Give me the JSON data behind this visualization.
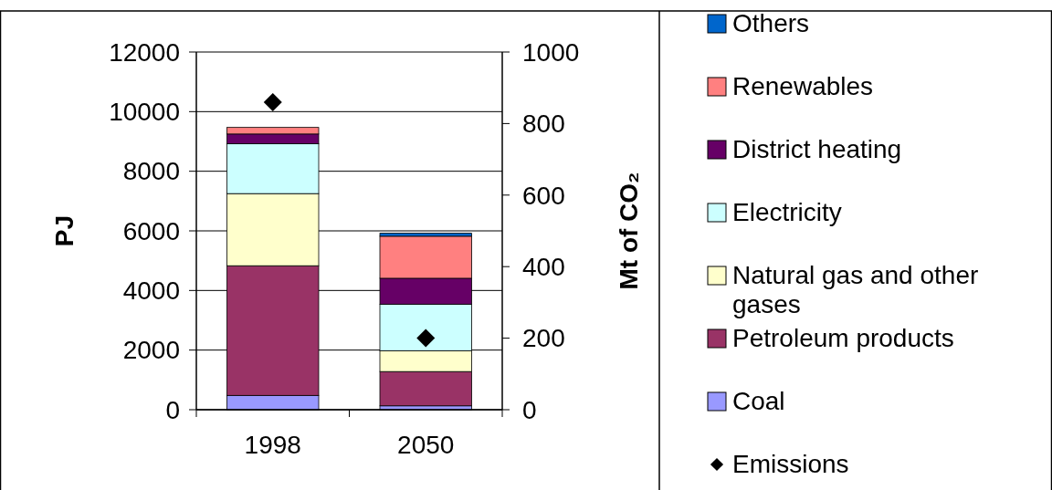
{
  "chart_data": {
    "type": "bar",
    "stacked": true,
    "ylabel": "PJ",
    "y2label": "Mt of CO₂",
    "categories": [
      "1998",
      "2050"
    ],
    "series": [
      {
        "name": "Coal",
        "color": "#9999ff",
        "values": [
          480,
          130
        ]
      },
      {
        "name": "Petroleum products",
        "color": "#993366",
        "values": [
          4350,
          1150
        ]
      },
      {
        "name": "Natural gas and other gases",
        "color": "#ffffcc",
        "values": [
          2420,
          700
        ]
      },
      {
        "name": "Electricity",
        "color": "#ccffff",
        "values": [
          1670,
          1560
        ]
      },
      {
        "name": "District heating",
        "color": "#660066",
        "values": [
          330,
          870
        ]
      },
      {
        "name": "Renewables",
        "color": "#ff8080",
        "values": [
          220,
          1410
        ]
      },
      {
        "name": "Others",
        "color": "#0066cc",
        "values": [
          0,
          100
        ]
      },
      {
        "name": "Emissions",
        "type": "scatter",
        "axis": "y2",
        "marker": "diamond",
        "color": "#000000",
        "values": [
          860,
          200
        ]
      }
    ],
    "ylim": [
      0,
      12000
    ],
    "yticks": [
      0,
      2000,
      4000,
      6000,
      8000,
      10000,
      12000
    ],
    "y2lim": [
      0,
      1000
    ],
    "y2ticks": [
      0,
      200,
      400,
      600,
      800,
      1000
    ],
    "grid": "y",
    "legend": "right"
  }
}
